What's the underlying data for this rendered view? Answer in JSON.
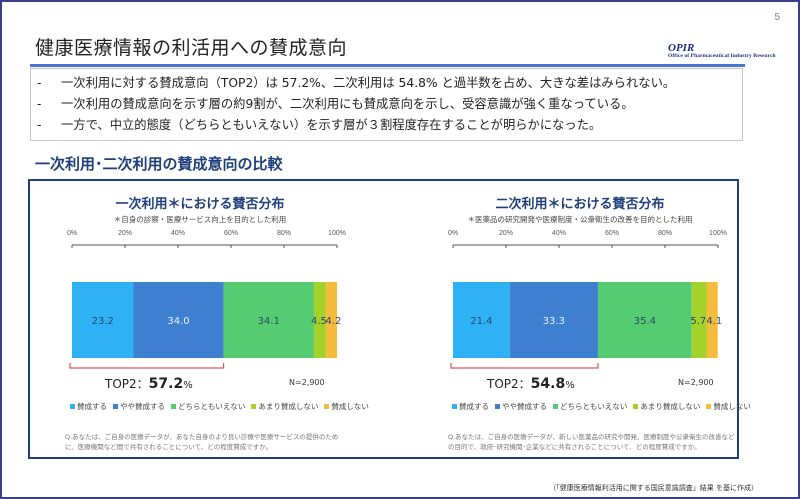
{
  "page_number": "5",
  "title": "健康医療情報の利活用への賛成意向",
  "logo": {
    "main": "OPIR",
    "sub": "Office of Pharmaceutical Industry Research"
  },
  "summary": {
    "bullets": [
      {
        "dash": "-",
        "text": "一次利用に対する賛成意向（TOP2）は 57.2%、二次利用は 54.8% と過半数を占め、大きな差はみられない。"
      },
      {
        "dash": "-",
        "text": "一次利用の賛成意向を示す層の約9割が、二次利用にも賛成意向を示し、受容意識が強く重なっている。"
      },
      {
        "dash": "-",
        "text": "一方で、中立的態度（どちらともいえない）を示す層が３割程度存在することが明らかになった。"
      }
    ]
  },
  "section_title": "一次利用･二次利用の賛成意向の比較",
  "colors": {
    "agree": "#2fb2f5",
    "somewhat_agree": "#3f7fcf",
    "neutral": "#55cc72",
    "somewhat_disagree": "#a5d12a",
    "disagree": "#f5bb3c",
    "bracket": "#d9585c",
    "navy": "#1e3f7a"
  },
  "chart_data": [
    {
      "type": "bar",
      "orientation": "horizontal-stacked",
      "title": "一次利用＊における賛否分布",
      "subtitle": "＊自身の診察・医療サービス向上を目的とした利用",
      "xlim": [
        0,
        100
      ],
      "ticks": [
        "0%",
        "20%",
        "40%",
        "60%",
        "80%",
        "100%"
      ],
      "tick_values": [
        0,
        20,
        40,
        60,
        80,
        100
      ],
      "series": [
        {
          "name": "賛成する",
          "value": 23.2,
          "label": "23.2",
          "color_key": "agree"
        },
        {
          "name": "やや賛成する",
          "value": 34.0,
          "label": "34.0",
          "color_key": "somewhat_agree"
        },
        {
          "name": "どちらともいえない",
          "value": 34.1,
          "label": "34.1",
          "color_key": "neutral"
        },
        {
          "name": "あまり賛成しない",
          "value": 4.5,
          "label": "4.5",
          "color_key": "somewhat_disagree"
        },
        {
          "name": "賛成しない",
          "value": 4.2,
          "label": "4.2",
          "color_key": "disagree"
        }
      ],
      "top2_prefix": "TOP2：",
      "top2_value": "57.2",
      "top2_unit": "%",
      "n": "N=2,900",
      "question": "Q.あなたは、ご自身の医療データが、あなた自身のより良い診療や医療サービスの提供のために、医療機関など間で共有されることについて、どの程度賛成ですか。"
    },
    {
      "type": "bar",
      "orientation": "horizontal-stacked",
      "title": "二次利用＊における賛否分布",
      "subtitle": "＊医薬品の研究開発や医療制度・公衆衛生の改善を目的とした利用",
      "xlim": [
        0,
        100
      ],
      "ticks": [
        "0%",
        "20%",
        "40%",
        "60%",
        "80%",
        "100%"
      ],
      "tick_values": [
        0,
        20,
        40,
        60,
        80,
        100
      ],
      "series": [
        {
          "name": "賛成する",
          "value": 21.4,
          "label": "21.4",
          "color_key": "agree"
        },
        {
          "name": "やや賛成する",
          "value": 33.3,
          "label": "33.3",
          "color_key": "somewhat_agree"
        },
        {
          "name": "どちらともいえない",
          "value": 35.4,
          "label": "35.4",
          "color_key": "neutral"
        },
        {
          "name": "あまり賛成しない",
          "value": 5.7,
          "label": "5.7",
          "color_key": "somewhat_disagree"
        },
        {
          "name": "賛成しない",
          "value": 4.1,
          "label": "4.1",
          "color_key": "disagree"
        }
      ],
      "top2_prefix": "TOP2：",
      "top2_value": "54.8",
      "top2_unit": "%",
      "n": "N=2,900",
      "question": "Q.あなたは、ご自身の医療データが、新しい医薬品の研究や開発、医療制度や公衆衛生の改善などの目的で、政府･研究機関･企業などに共有されることについて、どの程度賛成ですか。"
    }
  ],
  "legend": [
    {
      "label": "賛成する",
      "color_key": "agree"
    },
    {
      "label": "やや賛成する",
      "color_key": "somewhat_agree"
    },
    {
      "label": "どちらともいえない",
      "color_key": "neutral"
    },
    {
      "label": "あまり賛成しない",
      "color_key": "somewhat_disagree"
    },
    {
      "label": "賛成しない",
      "color_key": "disagree"
    }
  ],
  "source": "（「健康医療情報利活用に関する国民意識調査」結果 を基に作成）"
}
